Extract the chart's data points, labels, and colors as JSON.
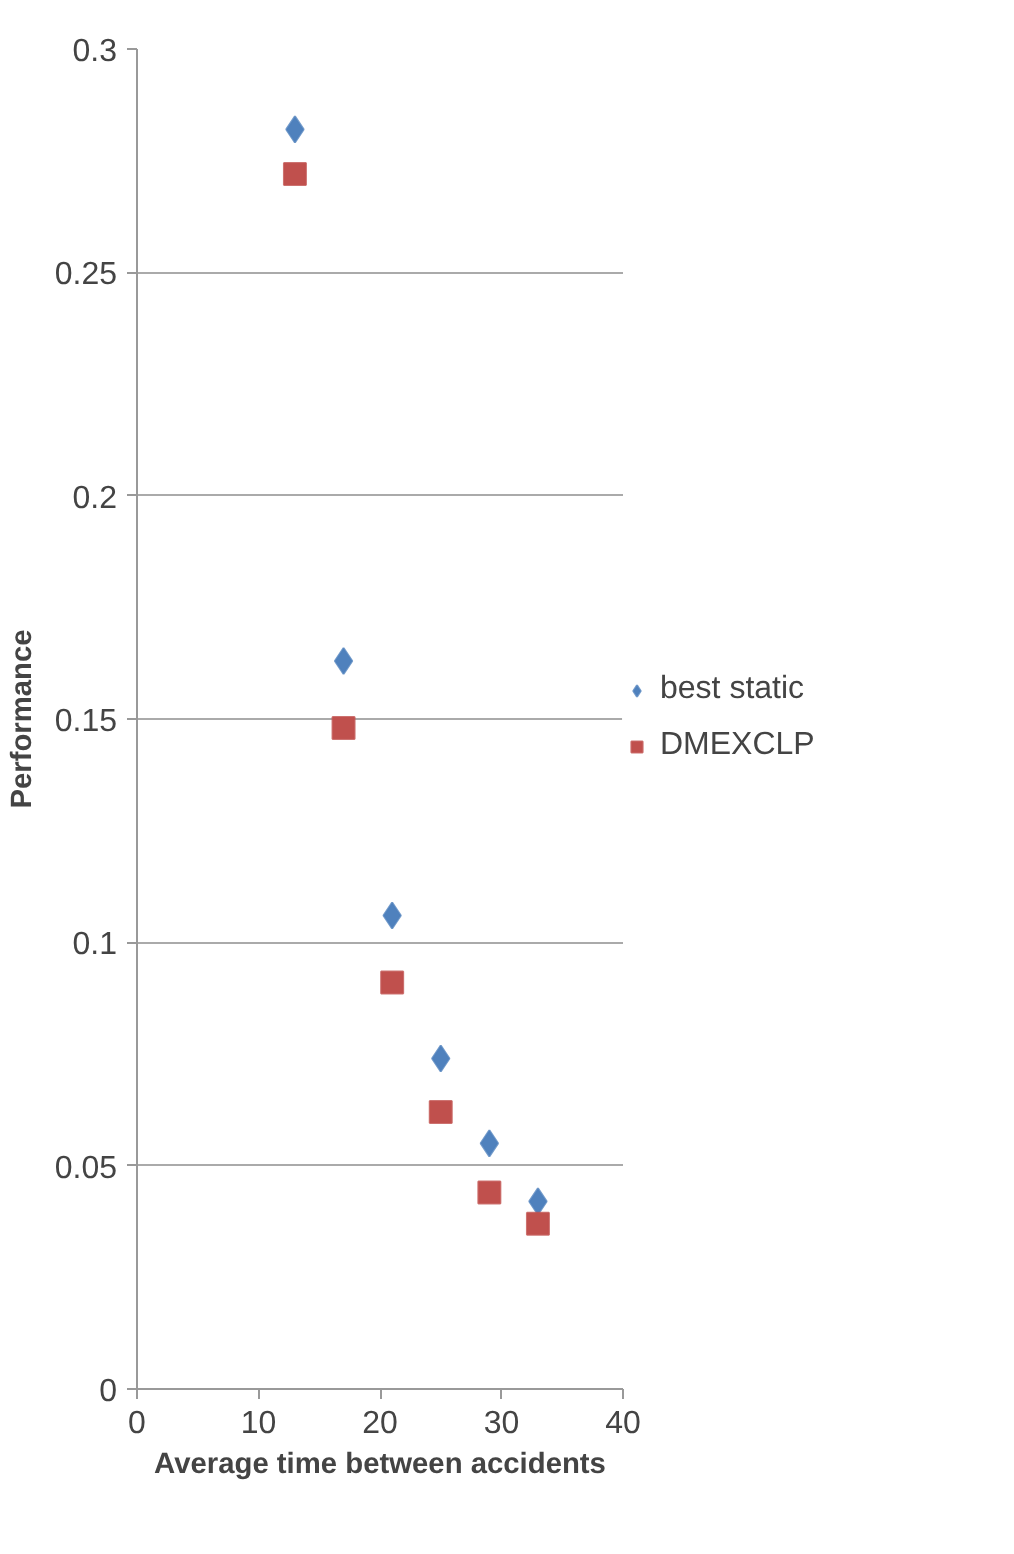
{
  "chart_data": {
    "type": "scatter",
    "xlabel": "Average time between accidents",
    "ylabel": "Performance",
    "xlim": [
      0,
      40
    ],
    "xticks": [
      0,
      10,
      20,
      30,
      40
    ],
    "ylim": [
      0,
      0.3
    ],
    "yticks": [
      0,
      0.05,
      0.1,
      0.15,
      0.2,
      0.25,
      0.3
    ],
    "grid": "y",
    "legend": "right",
    "series": [
      {
        "name": "best static",
        "color": "#4f81bd",
        "marker": "diamond",
        "x": [
          13,
          17,
          21,
          25,
          29,
          33
        ],
        "values": [
          0.282,
          0.163,
          0.106,
          0.074,
          0.055,
          0.042
        ]
      },
      {
        "name": "DMEXCLP",
        "color": "#c0504d",
        "marker": "square",
        "x": [
          13,
          17,
          21,
          25,
          29,
          33
        ],
        "values": [
          0.272,
          0.148,
          0.091,
          0.062,
          0.044,
          0.037
        ]
      }
    ]
  }
}
